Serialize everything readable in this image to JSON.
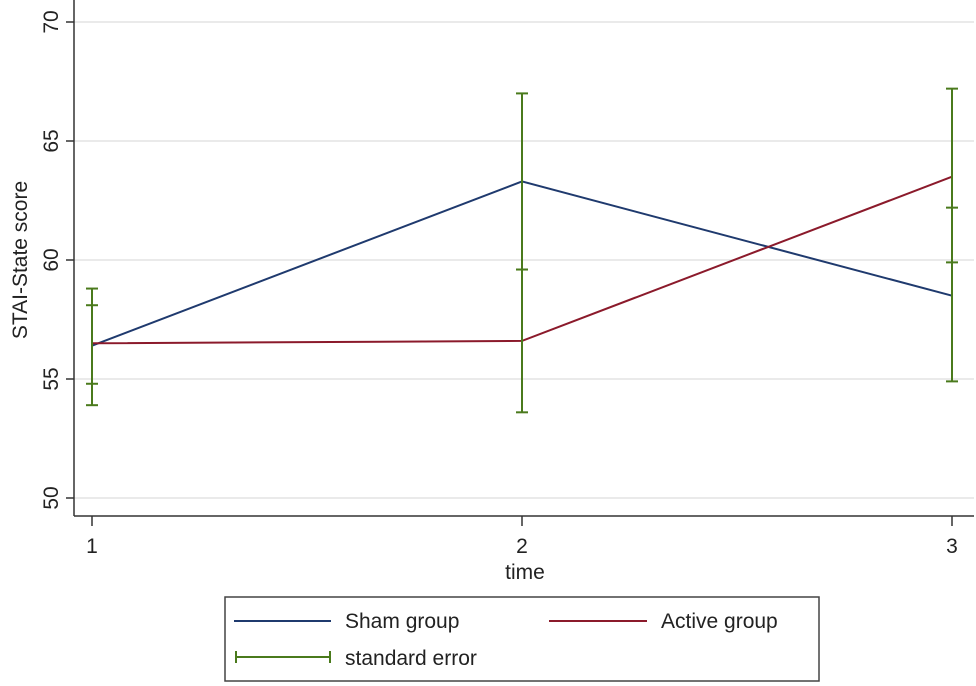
{
  "chart_data": {
    "type": "line",
    "x": [
      1,
      2,
      3
    ],
    "xticks": [
      "1",
      "2",
      "3"
    ],
    "yticks": [
      "50",
      "55",
      "60",
      "65",
      "70"
    ],
    "xlabel": "time",
    "ylabel": "STAI-State score",
    "ylim": [
      50,
      70
    ],
    "grid": true,
    "legend_position": "bottom",
    "series": [
      {
        "name": "Sham group",
        "color": "#1f3a6e",
        "values": [
          56.4,
          63.3,
          58.5
        ],
        "error_low": [
          53.9,
          59.6,
          54.9
        ],
        "error_high": [
          58.8,
          67.0,
          62.2
        ]
      },
      {
        "name": "Active group",
        "color": "#8b1a2b",
        "values": [
          56.5,
          56.6,
          63.5
        ],
        "error_low": [
          54.8,
          53.6,
          59.9
        ],
        "error_high": [
          58.1,
          59.6,
          67.2
        ]
      }
    ],
    "error_legend": {
      "name": "standard error",
      "color": "#4a7a1c"
    }
  }
}
